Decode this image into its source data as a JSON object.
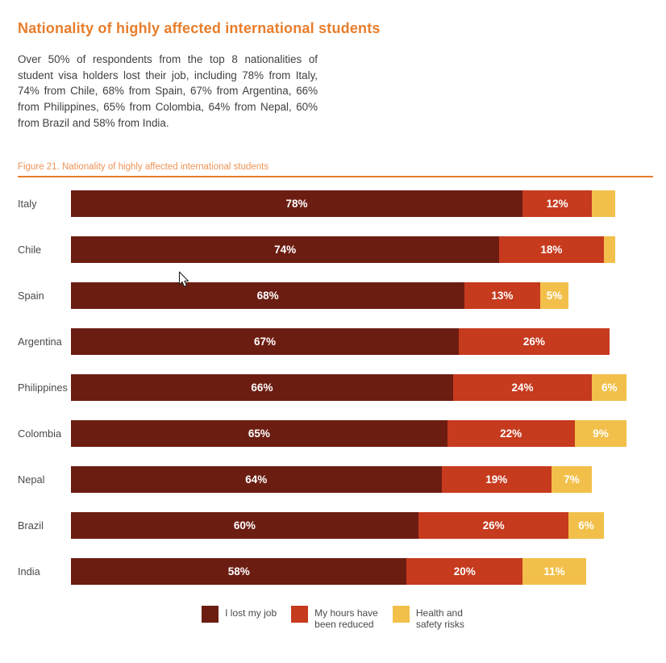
{
  "header": {
    "title": "Nationality of highly affected international students",
    "paragraph": "Over 50% of respondents from the top 8 nationalities of student visa holders lost their job, including 78% from Italy, 74% from Chile, 68% from Spain, 67% from Argentina, 66% from Philippines, 65% from Colombia, 64% from Nepal, 60% from Brazil and 58% from India."
  },
  "figure": {
    "caption": "Figure 21. Nationality of highly affected international students"
  },
  "colors": {
    "heading_orange": "#E87D2B",
    "caption_orange": "#EF9355",
    "rule_orange": "#E87D2B",
    "maroon": "#6C1D12",
    "red": "#C63A1E",
    "yellow": "#F2C04A",
    "body_text": "#3F3F3F",
    "label_gray": "#4A4A4A",
    "bar_value_text": "#FFFFFF"
  },
  "chart_data": {
    "type": "bar",
    "orientation": "horizontal",
    "stacked": true,
    "xmax": 100,
    "grid": false,
    "legend_position": "bottom",
    "categories": [
      "Italy",
      "Chile",
      "Spain",
      "Argentina",
      "Philippines",
      "Colombia",
      "Nepal",
      "Brazil",
      "India"
    ],
    "series": [
      {
        "name": "I lost my job",
        "color": "#6C1D12",
        "values": [
          78,
          74,
          68,
          67,
          66,
          65,
          64,
          60,
          58
        ],
        "labels": [
          "78%",
          "74%",
          "68%",
          "67%",
          "66%",
          "65%",
          "64%",
          "60%",
          "58%"
        ]
      },
      {
        "name": "My hours have been reduced",
        "color": "#C63A1E",
        "values": [
          12,
          18,
          13,
          26,
          24,
          22,
          19,
          26,
          20
        ],
        "labels": [
          "12%",
          "18%",
          "13%",
          "26%",
          "24%",
          "22%",
          "19%",
          "26%",
          "20%"
        ]
      },
      {
        "name": "Health and safety risks",
        "color": "#F2C04A",
        "values": [
          4,
          2,
          5,
          0,
          6,
          9,
          7,
          6,
          11
        ],
        "labels": [
          "",
          "",
          "5%",
          "",
          "6%",
          "9%",
          "7%",
          "6%",
          "11%"
        ]
      }
    ],
    "legend": [
      {
        "color": "#6C1D12",
        "lines": [
          "I lost my job"
        ]
      },
      {
        "color": "#C63A1E",
        "lines": [
          "My hours have",
          "been reduced"
        ]
      },
      {
        "color": "#F2C04A",
        "lines": [
          "Health and",
          "safety risks"
        ]
      }
    ]
  }
}
